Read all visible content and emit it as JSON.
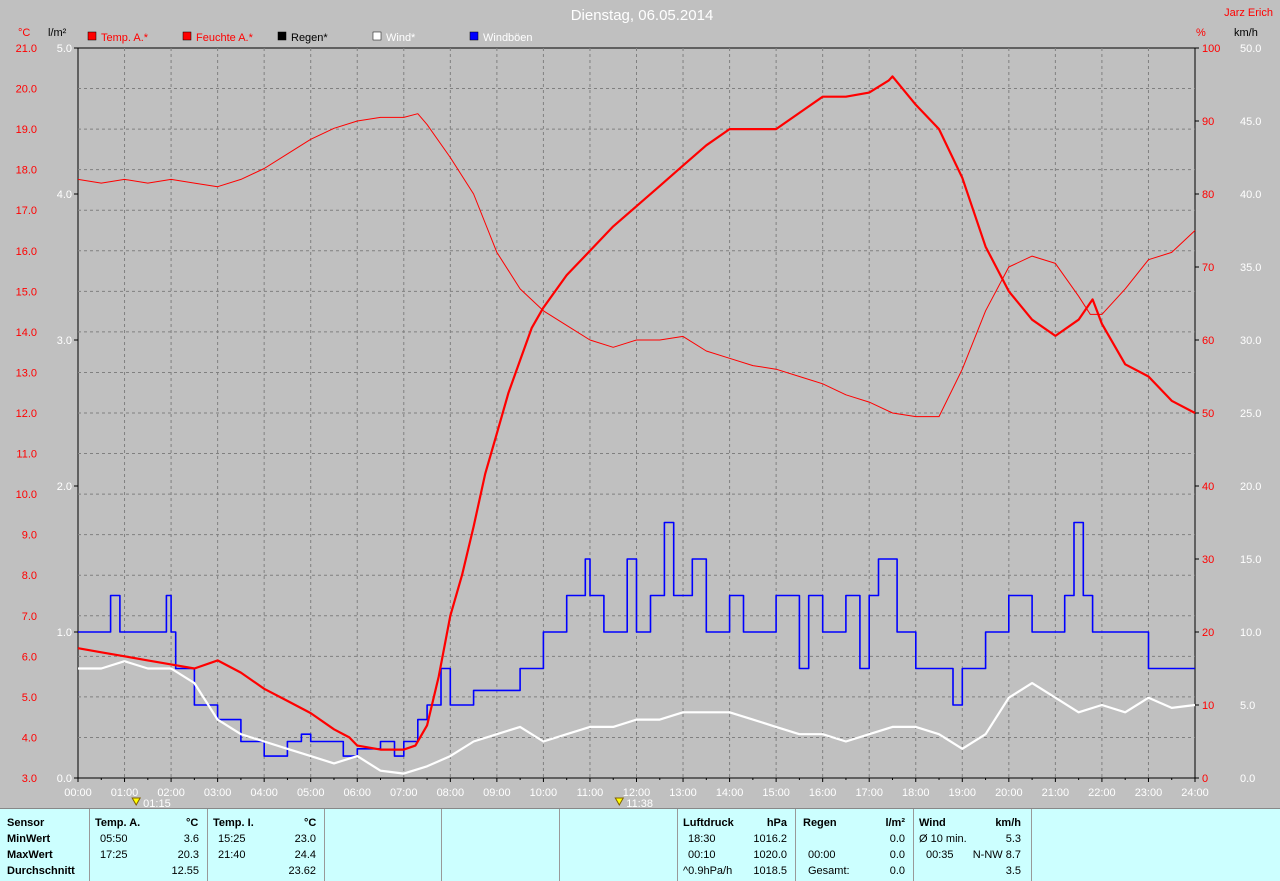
{
  "header": {
    "title": "Dienstag, 06.05.2014",
    "author": "Jarz Erich"
  },
  "axes": {
    "left_temp_unit": "°C",
    "left_rain_unit": "l/m²",
    "right_hum_unit": "%",
    "right_wind_unit": "km/h",
    "temp_ticks": [
      "21.0",
      "20.0",
      "19.0",
      "18.0",
      "17.0",
      "16.0",
      "15.0",
      "14.0",
      "13.0",
      "12.0",
      "11.0",
      "10.0",
      "9.0",
      "8.0",
      "7.0",
      "6.0",
      "5.0",
      "4.0",
      "3.0"
    ],
    "rain_ticks": [
      "5.0",
      "4.0",
      "3.0",
      "2.0",
      "1.0",
      "0.0"
    ],
    "hum_ticks": [
      "100",
      "90",
      "80",
      "70",
      "60",
      "50",
      "40",
      "30",
      "20",
      "10",
      "0"
    ],
    "wind_ticks": [
      "50.0",
      "45.0",
      "40.0",
      "35.0",
      "30.0",
      "25.0",
      "20.0",
      "15.0",
      "10.0",
      "5.0",
      "0.0"
    ],
    "x_ticks": [
      "00:00",
      "01:00",
      "02:00",
      "03:00",
      "04:00",
      "05:00",
      "06:00",
      "07:00",
      "08:00",
      "09:00",
      "10:00",
      "11:00",
      "12:00",
      "13:00",
      "14:00",
      "15:00",
      "16:00",
      "17:00",
      "18:00",
      "19:00",
      "20:00",
      "21:00",
      "22:00",
      "23:00",
      "24:00"
    ],
    "markers": [
      {
        "label": "01:15",
        "hour": 1.25
      },
      {
        "label": "11:38",
        "hour": 11.63
      }
    ]
  },
  "legend": [
    {
      "label": "Temp. A.*",
      "color": "#ff0000"
    },
    {
      "label": "Feuchte A.*",
      "color": "#ff0000"
    },
    {
      "label": "Regen*",
      "color": "#000000"
    },
    {
      "label": "Wind*",
      "color": "#ffffff"
    },
    {
      "label": "Windböen",
      "color": "#0000ff"
    }
  ],
  "colors": {
    "background": "#c0c0c0",
    "plot_background": "#c0c0c0",
    "grid": "#808080",
    "temp": "#ff0000",
    "humidity": "#ff0000",
    "wind": "#ffffff",
    "gust": "#0000ff",
    "axis_red": "#ff0000",
    "panel_bg": "#ccffff"
  },
  "chart_data": {
    "type": "line",
    "x_unit": "hour",
    "xlim": [
      0,
      24
    ],
    "grid": true,
    "legend_position": "top-left",
    "series": [
      {
        "name": "Temp. A.*",
        "axis": "°C",
        "ylim": [
          3,
          21
        ],
        "x": [
          0,
          0.5,
          1,
          1.5,
          2,
          2.5,
          3,
          3.5,
          4,
          4.5,
          5,
          5.5,
          5.83,
          6,
          6.5,
          7,
          7.25,
          7.5,
          7.75,
          8,
          8.25,
          8.5,
          8.75,
          9,
          9.25,
          9.5,
          9.75,
          10,
          10.5,
          11,
          11.5,
          12,
          12.5,
          13,
          13.5,
          14,
          14.5,
          15,
          15.5,
          16,
          16.5,
          17,
          17.42,
          17.5,
          18,
          18.5,
          19,
          19.5,
          20,
          20.5,
          21,
          21.5,
          21.8,
          22,
          22.5,
          23,
          23.5,
          24
        ],
        "y": [
          6.2,
          6.1,
          6.0,
          5.9,
          5.8,
          5.7,
          5.9,
          5.6,
          5.2,
          4.9,
          4.6,
          4.2,
          4.0,
          3.8,
          3.7,
          3.7,
          3.8,
          4.3,
          5.5,
          7.0,
          8.0,
          9.2,
          10.5,
          11.5,
          12.5,
          13.3,
          14.1,
          14.6,
          15.4,
          16.0,
          16.6,
          17.1,
          17.6,
          18.1,
          18.6,
          19.0,
          19.0,
          19.0,
          19.4,
          19.8,
          19.8,
          19.9,
          20.2,
          20.3,
          19.6,
          19.0,
          17.8,
          16.1,
          15.0,
          14.3,
          13.9,
          14.3,
          14.8,
          14.2,
          13.2,
          12.9,
          12.3,
          12.0
        ]
      },
      {
        "name": "Feuchte A.*",
        "axis": "%",
        "ylim": [
          0,
          100
        ],
        "x": [
          0,
          0.5,
          1,
          1.5,
          2,
          2.5,
          3,
          3.5,
          4,
          4.5,
          5,
          5.5,
          6,
          6.5,
          7,
          7.3,
          7.5,
          8,
          8.5,
          9,
          9.5,
          10,
          10.5,
          11,
          11.5,
          12,
          12.5,
          13,
          13.5,
          14,
          14.5,
          15,
          15.5,
          16,
          16.5,
          17,
          17.5,
          18,
          18.5,
          19,
          19.5,
          20,
          20.5,
          21,
          21.5,
          21.75,
          22,
          22.5,
          23,
          23.5,
          24
        ],
        "y": [
          82,
          81.5,
          82,
          81.5,
          82,
          81.5,
          81,
          82,
          83.5,
          85.5,
          87.5,
          89,
          90,
          90.5,
          90.5,
          91,
          89.5,
          85,
          80,
          72,
          67,
          64,
          62,
          60,
          59,
          60,
          60,
          60.5,
          58.5,
          57.5,
          56.5,
          56,
          55,
          54,
          52.5,
          51.5,
          50,
          49.5,
          49.5,
          56,
          64,
          70,
          71.5,
          70.5,
          66,
          63.5,
          63.5,
          67,
          71,
          72,
          75
        ]
      },
      {
        "name": "Wind*",
        "axis": "km/h",
        "ylim": [
          0,
          50
        ],
        "x": [
          0,
          0.5,
          1,
          1.5,
          2,
          2.5,
          3,
          3.5,
          4,
          4.5,
          5,
          5.5,
          6,
          6.5,
          7,
          7.5,
          8,
          8.5,
          9,
          9.5,
          10,
          10.5,
          11,
          11.5,
          12,
          12.5,
          13,
          13.5,
          14,
          14.5,
          15,
          15.5,
          16,
          16.5,
          17,
          17.5,
          18,
          18.5,
          19,
          19.5,
          20,
          20.5,
          21,
          21.5,
          22,
          22.5,
          23,
          23.5,
          24
        ],
        "y": [
          7.5,
          7.5,
          8,
          7.5,
          7.5,
          6.5,
          4,
          3,
          2.5,
          2,
          1.5,
          1,
          1.5,
          0.5,
          0.3,
          0.8,
          1.5,
          2.5,
          3,
          3.5,
          2.5,
          3,
          3.5,
          3.5,
          4,
          4,
          4.5,
          4.5,
          4.5,
          4,
          3.5,
          3,
          3,
          2.5,
          3,
          3.5,
          3.5,
          3,
          2,
          3,
          5.5,
          6.5,
          5.5,
          4.5,
          5,
          4.5,
          5.5,
          4.8,
          5
        ]
      },
      {
        "name": "Windböen",
        "axis": "km/h",
        "ylim": [
          0,
          50
        ],
        "x": [
          0,
          0.5,
          0.7,
          0.9,
          1,
          1.5,
          1.9,
          2,
          2.1,
          2.3,
          2.5,
          2.7,
          2.9,
          3,
          3.5,
          3.8,
          4,
          4.5,
          4.8,
          5,
          5.5,
          5.7,
          6,
          6.5,
          6.8,
          7,
          7.3,
          7.5,
          7.8,
          8,
          8.5,
          9,
          9.5,
          10,
          10.5,
          10.9,
          11,
          11.3,
          11.5,
          11.8,
          12,
          12.3,
          12.6,
          12.8,
          13,
          13.2,
          13.5,
          14,
          14.3,
          14.5,
          15,
          15.3,
          15.5,
          15.7,
          16,
          16.2,
          16.5,
          16.8,
          17,
          17.2,
          17.4,
          17.6,
          17.8,
          18,
          18.5,
          18.8,
          19,
          19.5,
          20,
          20.5,
          21,
          21.2,
          21.4,
          21.6,
          21.8,
          22,
          22.5,
          23,
          23.5,
          24
        ],
        "y": [
          10,
          10,
          12.5,
          10,
          10,
          10,
          12.5,
          10,
          7.5,
          7.5,
          5,
          5,
          5,
          4,
          2.5,
          2.5,
          1.5,
          2.5,
          3,
          2.5,
          2.5,
          1.5,
          2,
          2.5,
          1.5,
          2.5,
          4,
          5,
          7.5,
          5,
          6,
          6,
          7.5,
          10,
          12.5,
          15,
          12.5,
          10,
          10,
          15,
          10,
          12.5,
          17.5,
          12.5,
          12.5,
          15,
          10,
          12.5,
          10,
          10,
          12.5,
          12.5,
          7.5,
          12.5,
          10,
          10,
          12.5,
          7.5,
          12.5,
          15,
          15,
          10,
          10,
          7.5,
          7.5,
          5,
          7.5,
          10,
          12.5,
          10,
          10,
          12.5,
          17.5,
          12.5,
          10,
          10,
          10,
          7.5,
          7.5,
          7.5
        ]
      }
    ]
  },
  "panel": {
    "sensor": {
      "label": "Sensor",
      "min": "MinWert",
      "max": "MaxWert",
      "avg": "Durchschnitt"
    },
    "temp_a": {
      "label": "Temp. A.",
      "unit": "°C",
      "min_time": "05:50",
      "min_val": "3.6",
      "max_time": "17:25",
      "max_val": "20.3",
      "avg": "12.55"
    },
    "temp_i": {
      "label": "Temp. I.",
      "unit": "°C",
      "min_time": "15:25",
      "min_val": "23.0",
      "max_time": "21:40",
      "max_val": "24.4",
      "avg": "23.62"
    },
    "pressure": {
      "label": "Luftdruck",
      "unit": "hPa",
      "min_time": "18:30",
      "min_val": "1016.2",
      "max_time": "00:10",
      "max_val": "1020.0",
      "trend": "^0.9hPa/h",
      "avg": "1018.5"
    },
    "rain": {
      "label": "Regen",
      "unit": "l/m²",
      "row1": "0.0",
      "row2_time": "00:00",
      "row2_val": "0.0",
      "total_label": "Gesamt:",
      "total_val": "0.0"
    },
    "wind": {
      "label": "Wind",
      "unit": "km/h",
      "avg10_label": "Ø 10 min.",
      "avg10_val": "5.3",
      "max_time": "00:35",
      "max_val": "N-NW 8.7",
      "avg": "3.5"
    }
  }
}
